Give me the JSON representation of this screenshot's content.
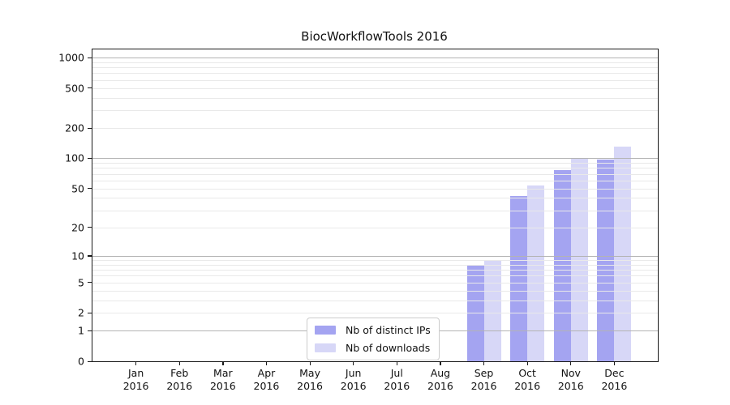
{
  "chart_data": {
    "type": "bar",
    "title": "BiocWorkflowTools 2016",
    "year_label": "2016",
    "categories": [
      "Jan",
      "Feb",
      "Mar",
      "Apr",
      "May",
      "Jun",
      "Jul",
      "Aug",
      "Sep",
      "Oct",
      "Nov",
      "Dec"
    ],
    "series": [
      {
        "name": "Nb of distinct IPs",
        "color": "#a4a4f1",
        "values": [
          0,
          0,
          0,
          0,
          0,
          0,
          0,
          0,
          8,
          42,
          76,
          98
        ]
      },
      {
        "name": "Nb of downloads",
        "color": "#d7d7f7",
        "values": [
          0,
          0,
          0,
          0,
          0,
          0,
          0,
          0,
          9,
          53,
          100,
          131
        ]
      }
    ],
    "y_ticks": [
      0,
      1,
      2,
      5,
      10,
      20,
      50,
      100,
      200,
      500,
      1000
    ],
    "y_major_gridlines": [
      1,
      10,
      100,
      1000
    ],
    "y_minor_gridlines": [
      2,
      3,
      4,
      5,
      6,
      7,
      8,
      9,
      20,
      30,
      40,
      50,
      60,
      70,
      80,
      90,
      200,
      300,
      400,
      500,
      600,
      700,
      800,
      900
    ],
    "y_scale": "log10(value+1)",
    "ylim": [
      0,
      1200
    ],
    "grid": true,
    "legend_position": "lower center",
    "colors": {
      "major_grid": "#b3b3b3",
      "minor_grid": "#e9e9e9",
      "spine": "#1a1a1a",
      "text": "#111111"
    }
  }
}
